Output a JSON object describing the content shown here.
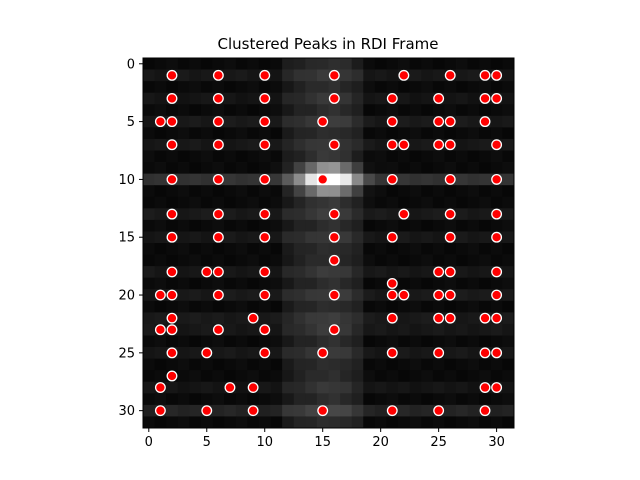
{
  "chart_data": {
    "type": "heatmap",
    "title": "Clustered Peaks in RDI Frame",
    "xlabel": "",
    "ylabel": "",
    "grid_size": [
      32,
      32
    ],
    "xlim": [
      -0.5,
      31.5
    ],
    "ylim": [
      31.5,
      -0.5
    ],
    "xticks": [
      0,
      5,
      10,
      15,
      20,
      25,
      30
    ],
    "yticks": [
      0,
      5,
      10,
      15,
      20,
      25,
      30
    ],
    "colormap": "gray",
    "peak_marker_color": "#ff0000",
    "peak_edge_color": "#ffffff",
    "peak_points": [
      [
        2,
        1
      ],
      [
        6,
        1
      ],
      [
        10,
        1
      ],
      [
        16,
        1
      ],
      [
        22,
        1
      ],
      [
        26,
        1
      ],
      [
        29,
        1
      ],
      [
        30,
        1
      ],
      [
        2,
        3
      ],
      [
        6,
        3
      ],
      [
        10,
        3
      ],
      [
        16,
        3
      ],
      [
        21,
        3
      ],
      [
        25,
        3
      ],
      [
        29,
        3
      ],
      [
        30,
        3
      ],
      [
        1,
        5
      ],
      [
        2,
        5
      ],
      [
        6,
        5
      ],
      [
        10,
        5
      ],
      [
        15,
        5
      ],
      [
        21,
        5
      ],
      [
        25,
        5
      ],
      [
        26,
        5
      ],
      [
        29,
        5
      ],
      [
        2,
        7
      ],
      [
        6,
        7
      ],
      [
        10,
        7
      ],
      [
        16,
        7
      ],
      [
        21,
        7
      ],
      [
        22,
        7
      ],
      [
        25,
        7
      ],
      [
        26,
        7
      ],
      [
        30,
        7
      ],
      [
        2,
        10
      ],
      [
        6,
        10
      ],
      [
        10,
        10
      ],
      [
        15,
        10
      ],
      [
        21,
        10
      ],
      [
        26,
        10
      ],
      [
        30,
        10
      ],
      [
        2,
        13
      ],
      [
        6,
        13
      ],
      [
        10,
        13
      ],
      [
        16,
        13
      ],
      [
        22,
        13
      ],
      [
        26,
        13
      ],
      [
        30,
        13
      ],
      [
        2,
        15
      ],
      [
        6,
        15
      ],
      [
        10,
        15
      ],
      [
        16,
        15
      ],
      [
        21,
        15
      ],
      [
        26,
        15
      ],
      [
        30,
        15
      ],
      [
        16,
        17
      ],
      [
        2,
        18
      ],
      [
        5,
        18
      ],
      [
        6,
        18
      ],
      [
        10,
        18
      ],
      [
        21,
        19
      ],
      [
        25,
        18
      ],
      [
        26,
        18
      ],
      [
        30,
        18
      ],
      [
        1,
        20
      ],
      [
        2,
        20
      ],
      [
        6,
        20
      ],
      [
        10,
        20
      ],
      [
        16,
        20
      ],
      [
        21,
        20
      ],
      [
        22,
        20
      ],
      [
        25,
        20
      ],
      [
        26,
        20
      ],
      [
        30,
        20
      ],
      [
        2,
        22
      ],
      [
        9,
        22
      ],
      [
        21,
        22
      ],
      [
        25,
        22
      ],
      [
        26,
        22
      ],
      [
        29,
        22
      ],
      [
        30,
        22
      ],
      [
        1,
        23
      ],
      [
        2,
        23
      ],
      [
        6,
        23
      ],
      [
        10,
        23
      ],
      [
        16,
        23
      ],
      [
        2,
        25
      ],
      [
        5,
        25
      ],
      [
        10,
        25
      ],
      [
        15,
        25
      ],
      [
        21,
        25
      ],
      [
        25,
        25
      ],
      [
        29,
        25
      ],
      [
        30,
        25
      ],
      [
        2,
        27
      ],
      [
        1,
        28
      ],
      [
        7,
        28
      ],
      [
        9,
        28
      ],
      [
        29,
        28
      ],
      [
        30,
        28
      ],
      [
        1,
        30
      ],
      [
        5,
        30
      ],
      [
        9,
        30
      ],
      [
        15,
        30
      ],
      [
        21,
        30
      ],
      [
        25,
        30
      ],
      [
        29,
        30
      ]
    ],
    "bright_peak": [
      15,
      10
    ]
  }
}
